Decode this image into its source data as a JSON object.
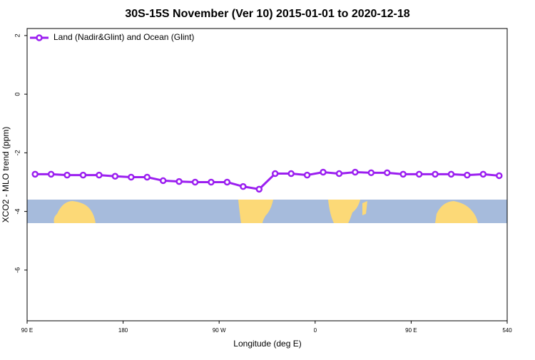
{
  "chart_data": {
    "type": "line",
    "title": "30S-15S November (Ver 10)   2015-01-01 to 2020-12-18",
    "x_label": "Longitude (deg E)",
    "y_label": "XCO2 - MLO trend (ppm)",
    "legend_position": "top-left",
    "x": [
      97.5,
      112.5,
      127.5,
      142.5,
      157.5,
      172.5,
      187.5,
      202.5,
      217.5,
      232.5,
      247.5,
      262.5,
      277.5,
      292.5,
      307.5,
      322.5,
      337.5,
      352.5,
      367.5,
      382.5,
      397.5,
      412.5,
      427.5,
      442.5,
      457.5,
      472.5,
      487.5,
      502.5,
      517.5,
      532.5
    ],
    "series": [
      {
        "name": "Land (Nadir&Glint) and Ocean (Glint)",
        "color": "#9b1ff0",
        "values": [
          -2.73,
          -2.73,
          -2.76,
          -2.76,
          -2.76,
          -2.8,
          -2.83,
          -2.83,
          -2.95,
          -2.98,
          -3.0,
          -3.0,
          -3.0,
          -3.15,
          -3.24,
          -2.71,
          -2.71,
          -2.76,
          -2.66,
          -2.71,
          -2.66,
          -2.68,
          -2.68,
          -2.73,
          -2.73,
          -2.73,
          -2.73,
          -2.76,
          -2.73,
          -2.78
        ]
      }
    ],
    "xlim": [
      90,
      540
    ],
    "xticks": [
      {
        "value": 90,
        "label": "90 E"
      },
      180,
      {
        "value": 270,
        "label": "90 W"
      },
      {
        "value": 360,
        "label": "0"
      },
      {
        "value": 450,
        "label": "90 E"
      },
      540
    ],
    "ylim": [
      -7.73,
      2.24
    ],
    "yticks": [
      2,
      0,
      -2,
      -4,
      -6
    ]
  }
}
